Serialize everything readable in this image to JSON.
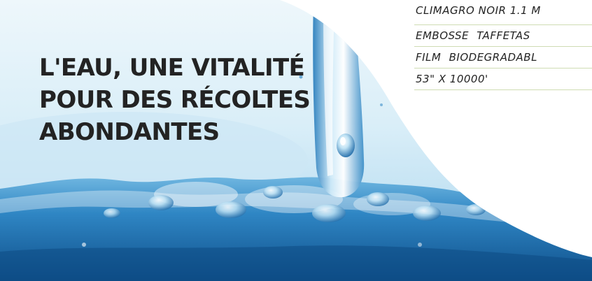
{
  "hero": {
    "title_lines": [
      "L'EAU, UNE VITALITÉ",
      "POUR DES RÉCOLTES",
      "ABONDANTES"
    ],
    "image_icon": "water-splash-illustration"
  },
  "specs": [
    "CLIMAGRO NOIR 1.1 M",
    "EMBOSSE TAFFETAS",
    "FILM BIODEGRADABL",
    "53\" X 10000'"
  ],
  "colors": {
    "title_text": "#232323",
    "spec_divider": "#cfdcb3",
    "water_deep": "#1f6fae",
    "water_light": "#bfe2f4"
  }
}
